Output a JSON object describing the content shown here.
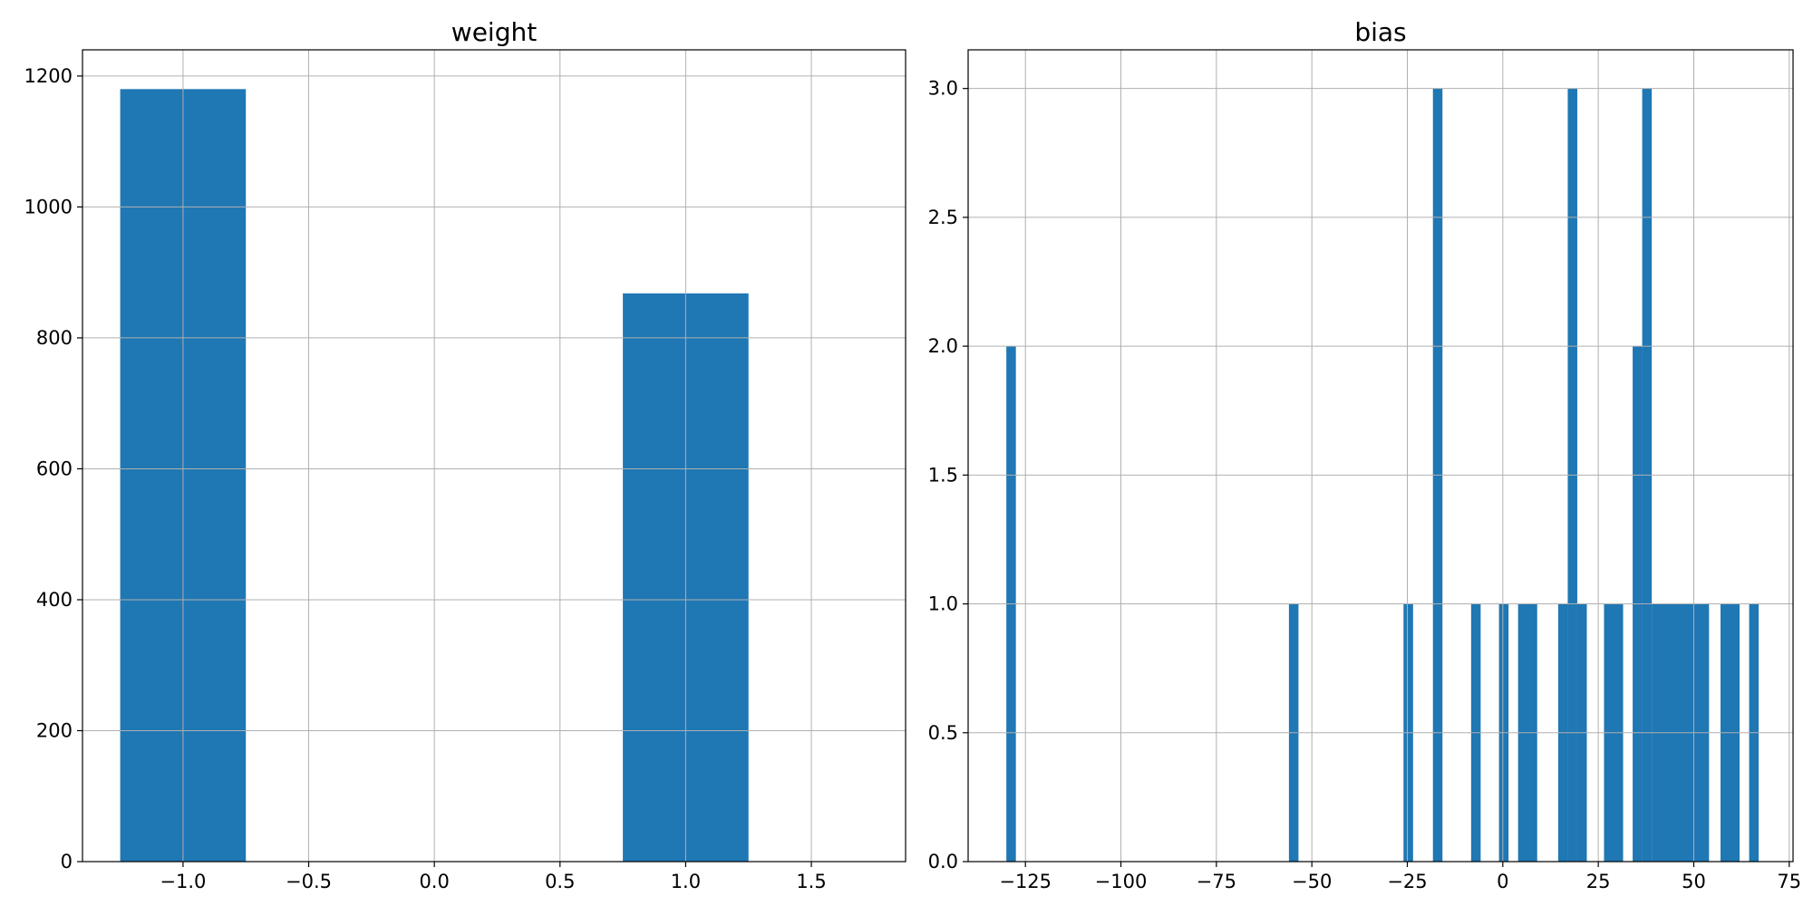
{
  "chart_data": [
    {
      "type": "bar",
      "title": "weight",
      "xlabel": "",
      "ylabel": "",
      "xlim": [
        -1.4,
        1.875
      ],
      "ylim": [
        0,
        1240
      ],
      "grid": true,
      "color": "#1f77b4",
      "x_ticks": [
        -1.0,
        -0.5,
        0.0,
        0.5,
        1.0,
        1.5
      ],
      "x_tick_labels": [
        "−1.0",
        "−0.5",
        "0.0",
        "0.5",
        "1.0",
        "1.5"
      ],
      "y_ticks": [
        0,
        200,
        400,
        600,
        800,
        1000,
        1200
      ],
      "y_tick_labels": [
        "0",
        "200",
        "400",
        "600",
        "800",
        "1000",
        "1200"
      ],
      "bins": [
        {
          "x0": -1.25,
          "x1": -0.75,
          "count": 1180
        },
        {
          "x0": 0.75,
          "x1": 1.25,
          "count": 868
        }
      ]
    },
    {
      "type": "bar",
      "title": "bias",
      "xlabel": "",
      "ylabel": "",
      "xlim": [
        -140,
        76
      ],
      "ylim": [
        0,
        3.15
      ],
      "grid": true,
      "color": "#1f77b4",
      "x_ticks": [
        -125,
        -100,
        -75,
        -50,
        -25,
        0,
        25,
        50,
        75
      ],
      "x_tick_labels": [
        "−125",
        "−100",
        "−75",
        "−50",
        "−25",
        "0",
        "25",
        "50",
        "75"
      ],
      "y_ticks": [
        0.0,
        0.5,
        1.0,
        1.5,
        2.0,
        2.5,
        3.0
      ],
      "y_tick_labels": [
        "0.0",
        "0.5",
        "1.0",
        "1.5",
        "2.0",
        "2.5",
        "3.0"
      ],
      "bins": [
        {
          "x0": -130.0,
          "x1": -127.5,
          "count": 2
        },
        {
          "x0": -56.0,
          "x1": -53.5,
          "count": 1
        },
        {
          "x0": -26.0,
          "x1": -23.5,
          "count": 1
        },
        {
          "x0": -18.3,
          "x1": -15.8,
          "count": 3
        },
        {
          "x0": -8.3,
          "x1": -5.8,
          "count": 1
        },
        {
          "x0": -1.0,
          "x1": 1.5,
          "count": 1
        },
        {
          "x0": 4.0,
          "x1": 9.0,
          "count": 1
        },
        {
          "x0": 14.5,
          "x1": 17.0,
          "count": 1
        },
        {
          "x0": 17.0,
          "x1": 19.5,
          "count": 3
        },
        {
          "x0": 19.5,
          "x1": 22.0,
          "count": 1
        },
        {
          "x0": 26.5,
          "x1": 31.5,
          "count": 1
        },
        {
          "x0": 34.0,
          "x1": 36.5,
          "count": 2
        },
        {
          "x0": 36.5,
          "x1": 39.0,
          "count": 3
        },
        {
          "x0": 39.0,
          "x1": 54.0,
          "count": 1
        },
        {
          "x0": 57.0,
          "x1": 62.0,
          "count": 1
        },
        {
          "x0": 64.5,
          "x1": 67.0,
          "count": 1
        }
      ]
    }
  ]
}
